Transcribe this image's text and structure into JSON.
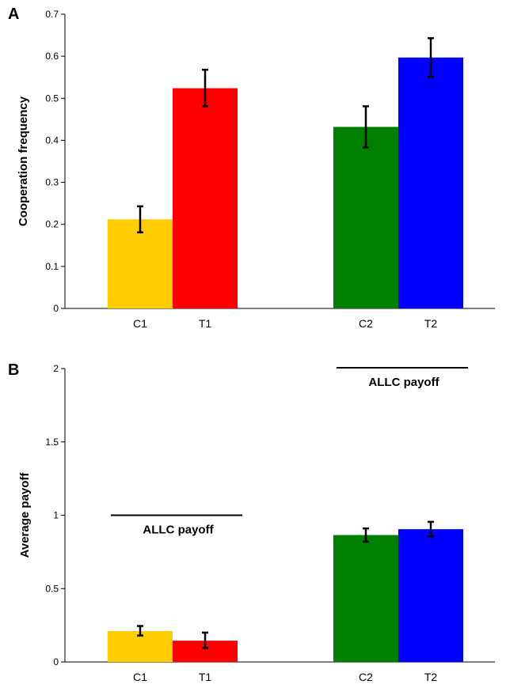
{
  "chart_data": [
    {
      "type": "bar",
      "panel_label": "A",
      "ylabel": "Cooperation frequency",
      "ylim": [
        0,
        0.7
      ],
      "yticks": [
        "0",
        "0.1",
        "0.2",
        "0.3",
        "0.4",
        "0.5",
        "0.6",
        "0.7"
      ],
      "grid": false,
      "groups": [
        {
          "bars": [
            {
              "label": "C1",
              "value": 0.212,
              "err_low": 0.181,
              "err_high": 0.243,
              "color": "#FFCC00"
            },
            {
              "label": "T1",
              "value": 0.524,
              "err_low": 0.481,
              "err_high": 0.568,
              "color": "#FF0000"
            }
          ]
        },
        {
          "bars": [
            {
              "label": "C2",
              "value": 0.432,
              "err_low": 0.383,
              "err_high": 0.481,
              "color": "#008000"
            },
            {
              "label": "T2",
              "value": 0.597,
              "err_low": 0.551,
              "err_high": 0.643,
              "color": "#0000FF"
            }
          ]
        }
      ],
      "reference_lines": []
    },
    {
      "type": "bar",
      "panel_label": "B",
      "ylabel": "Average payoff",
      "ylim": [
        0,
        2
      ],
      "yticks": [
        "0",
        "0.5",
        "1",
        "1.5",
        "2"
      ],
      "grid": false,
      "groups": [
        {
          "bars": [
            {
              "label": "C1",
              "value": 0.21,
              "err_low": 0.18,
              "err_high": 0.245,
              "color": "#FFCC00"
            },
            {
              "label": "T1",
              "value": 0.145,
              "err_low": 0.095,
              "err_high": 0.2,
              "color": "#FF0000"
            }
          ]
        },
        {
          "bars": [
            {
              "label": "C2",
              "value": 0.865,
              "err_low": 0.82,
              "err_high": 0.91,
              "color": "#008000"
            },
            {
              "label": "T2",
              "value": 0.905,
              "err_low": 0.855,
              "err_high": 0.955,
              "color": "#0000FF"
            }
          ]
        }
      ],
      "reference_lines": [
        {
          "label": "ALLC payoff",
          "value": 1.0,
          "group": 0
        },
        {
          "label": "ALLC payoff",
          "value": 2.0,
          "group": 1
        }
      ]
    }
  ]
}
